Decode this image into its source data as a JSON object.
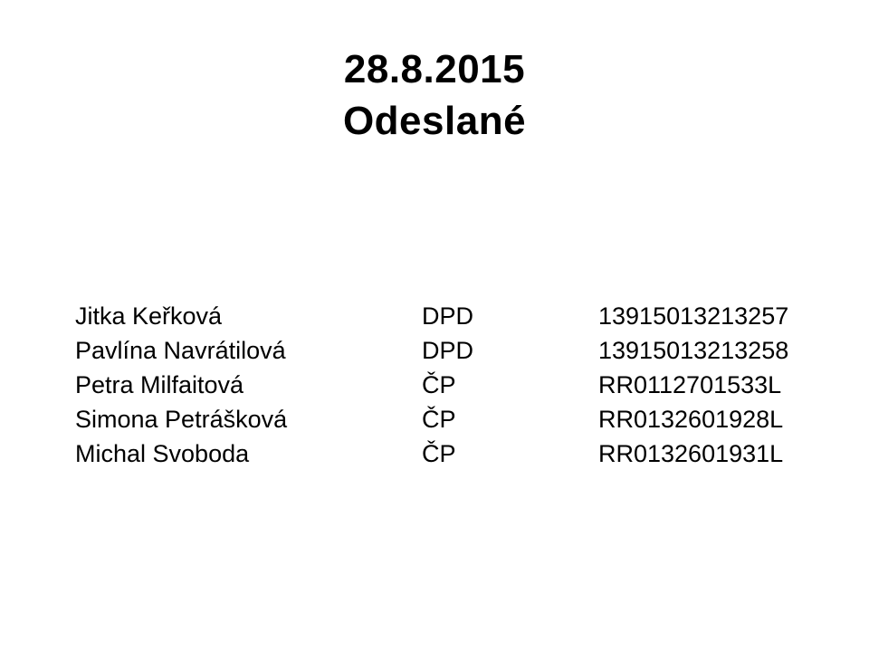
{
  "title": {
    "date": "28.8.2015",
    "subtitle": "Odeslané"
  },
  "shipments": {
    "rows": [
      {
        "name": "Jitka Keřková",
        "carrier": "DPD",
        "number": "13915013213257"
      },
      {
        "name": "Pavlína Navrátilová",
        "carrier": "DPD",
        "number": "13915013213258"
      },
      {
        "name": "Petra Milfaitová",
        "carrier": "ČP",
        "number": "RR0112701533L"
      },
      {
        "name": "Simona Petrášková",
        "carrier": "ČP",
        "number": "RR0132601928L"
      },
      {
        "name": "Michal Svoboda",
        "carrier": "ČP",
        "number": "RR0132601931L"
      }
    ]
  },
  "colors": {
    "background": "#ffffff",
    "text": "#000000"
  }
}
